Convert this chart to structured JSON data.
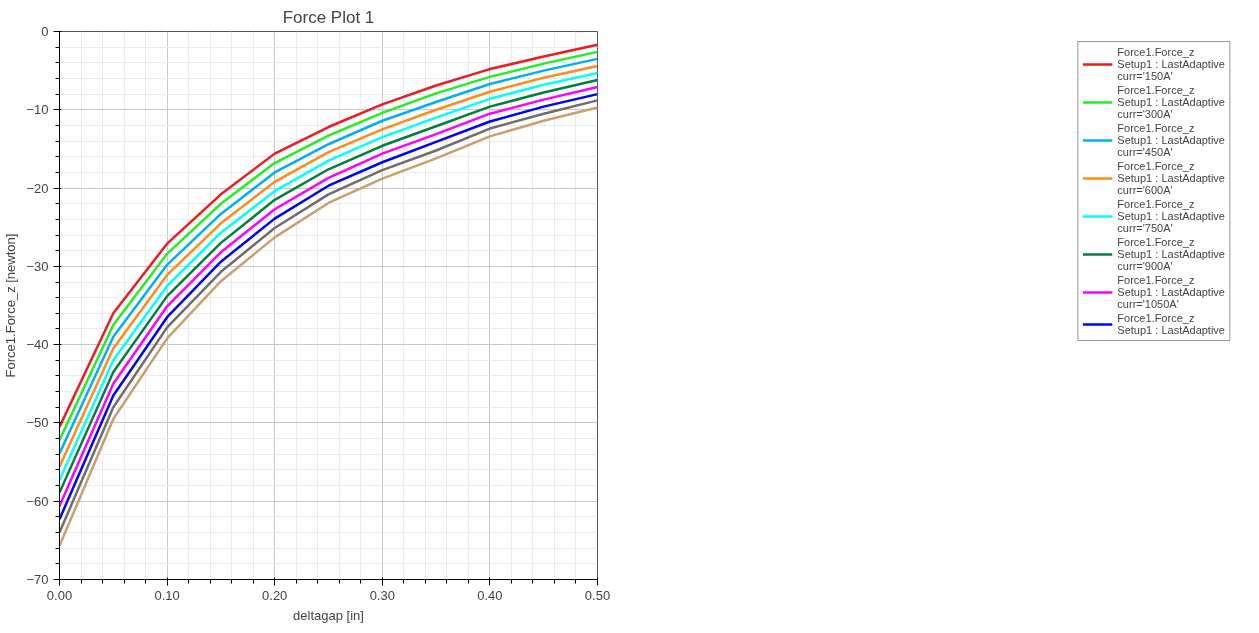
{
  "chart_data": {
    "type": "line",
    "title": "Force Plot 1",
    "xlabel": "deltagap [in]",
    "ylabel": "Force1.Force_z [newton]",
    "x": [
      0.0,
      0.05,
      0.1,
      0.15,
      0.2,
      0.25,
      0.3,
      0.35,
      0.4,
      0.45,
      0.5
    ],
    "xlim": [
      0,
      0.5
    ],
    "ylim": [
      -70,
      0
    ],
    "xticks": [
      {
        "value": 0,
        "label": "0.00"
      },
      {
        "value": 0.1,
        "label": "0.10"
      },
      {
        "value": 0.2,
        "label": "0.20"
      },
      {
        "value": 0.3,
        "label": "0.30"
      },
      {
        "value": 0.4,
        "label": "0.40"
      },
      {
        "value": 0.5,
        "label": "0.50"
      }
    ],
    "yticks": [
      -70,
      -60,
      -50,
      -40,
      -30,
      -20,
      -10,
      0
    ],
    "grid": true,
    "legend": "right",
    "marker": "none",
    "line_style": "solid",
    "series": [
      {
        "name": "Force1.Force_z\nSetup1 : LastAdaptive\ncurr='150A'",
        "color": "#ed1c24",
        "values": [
          -50.5,
          -36.0,
          -27.1,
          -20.8,
          -15.6,
          -12.2,
          -9.3,
          -6.9,
          -4.8,
          -3.2,
          -1.7
        ]
      },
      {
        "name": "Force1.Force_z\nSetup1 : LastAdaptive\ncurr='300A'",
        "color": "#22ee22",
        "values": [
          -52.2,
          -37.5,
          -28.4,
          -22.0,
          -16.8,
          -13.3,
          -10.4,
          -7.9,
          -5.8,
          -4.1,
          -2.6
        ]
      },
      {
        "name": "Force1.Force_z\nSetup1 : LastAdaptive\ncurr='450A'",
        "color": "#00b0f0",
        "values": [
          -53.9,
          -39.0,
          -29.8,
          -23.3,
          -18.0,
          -14.4,
          -11.4,
          -9.0,
          -6.7,
          -5.0,
          -3.5
        ]
      },
      {
        "name": "Force1.Force_z\nSetup1 : LastAdaptive\ncurr='600A'",
        "color": "#ff8c1a",
        "values": [
          -55.6,
          -40.5,
          -31.1,
          -24.5,
          -19.2,
          -15.4,
          -12.5,
          -10.0,
          -7.7,
          -5.9,
          -4.4
        ]
      },
      {
        "name": "Force1.Force_z\nSetup1 : LastAdaptive\ncurr='750A'",
        "color": "#00ffff",
        "values": [
          -57.3,
          -42.0,
          -32.5,
          -25.7,
          -20.4,
          -16.5,
          -13.5,
          -11.0,
          -8.6,
          -6.8,
          -5.3
        ]
      },
      {
        "name": "Force1.Force_z\nSetup1 : LastAdaptive\ncurr='900A'",
        "color": "#008040",
        "values": [
          -58.9,
          -43.5,
          -33.8,
          -27.0,
          -21.5,
          -17.6,
          -14.6,
          -12.1,
          -9.6,
          -7.8,
          -6.2
        ]
      },
      {
        "name": "Force1.Force_z\nSetup1 : LastAdaptive\ncurr='1050A'",
        "color": "#ff00ff",
        "values": [
          -60.6,
          -45.0,
          -35.1,
          -28.2,
          -22.7,
          -18.7,
          -15.6,
          -13.1,
          -10.5,
          -8.7,
          -7.1
        ]
      },
      {
        "name": "Force1.Force_z\nSetup1 : LastAdaptive",
        "color": "#0000ff",
        "values": [
          -62.3,
          -46.5,
          -36.5,
          -29.4,
          -23.9,
          -19.7,
          -16.7,
          -14.1,
          -11.5,
          -9.6,
          -8.0
        ]
      },
      {
        "color": "#6e6e6e",
        "values": [
          -64.0,
          -48.0,
          -37.8,
          -30.7,
          -25.1,
          -20.8,
          -17.7,
          -15.2,
          -12.4,
          -10.5,
          -8.8
        ]
      },
      {
        "color": "#c8a070",
        "values": [
          -65.7,
          -49.5,
          -39.2,
          -31.9,
          -26.3,
          -21.9,
          -18.8,
          -16.2,
          -13.4,
          -11.4,
          -9.7
        ]
      }
    ]
  }
}
